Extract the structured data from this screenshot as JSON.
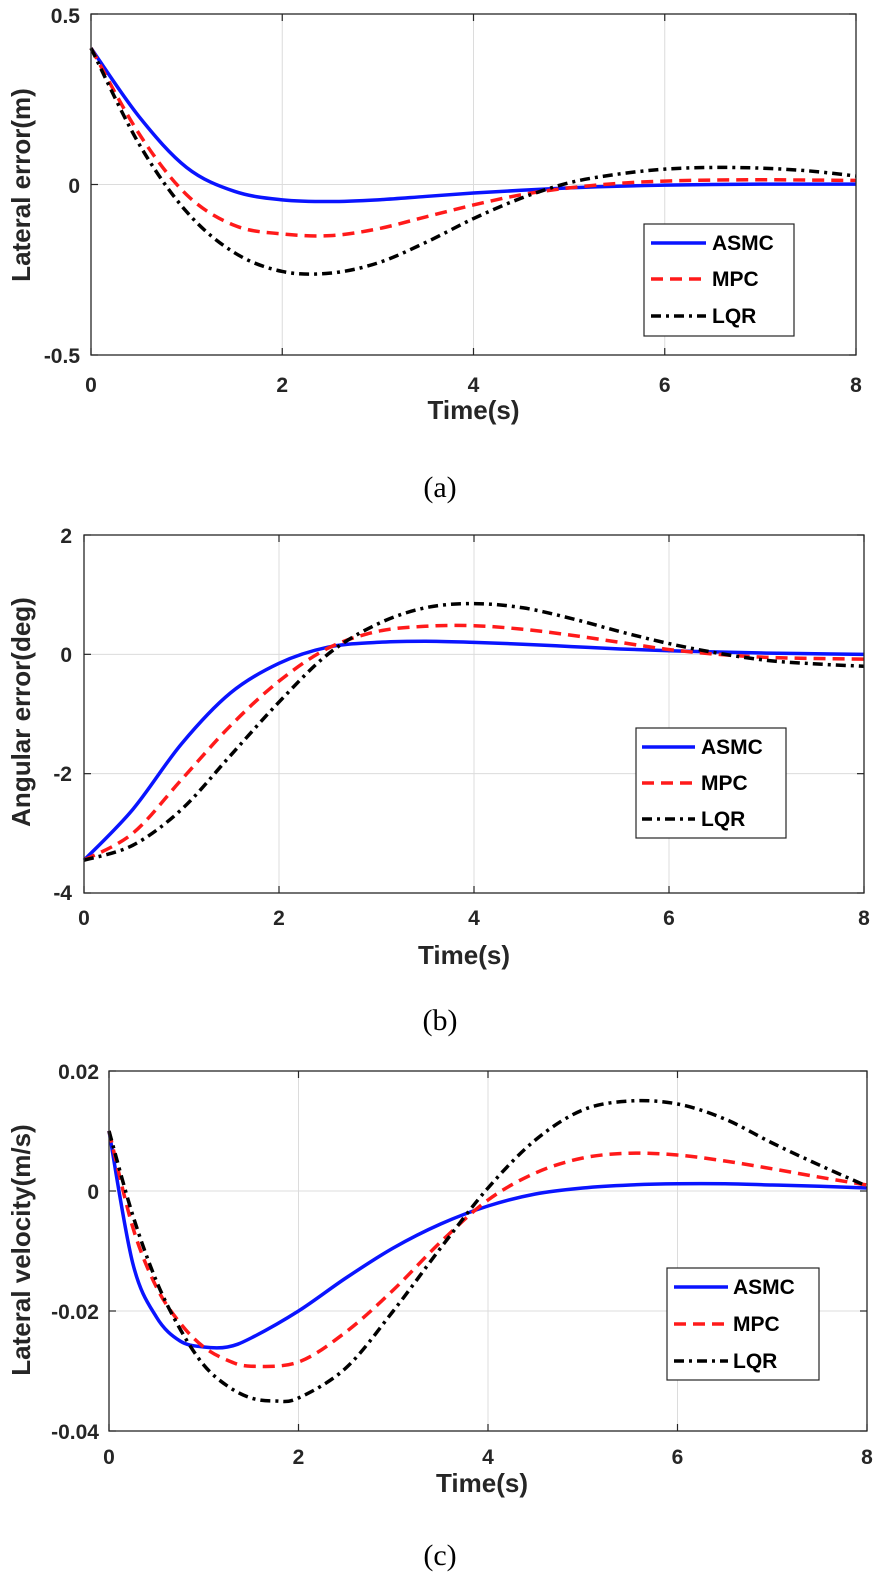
{
  "colors": {
    "ASMC": "#0a14ff",
    "MPC": "#ff1a1a",
    "LQR": "#000000",
    "grid": "#dcdcdc",
    "axis": "#262626"
  },
  "chart_data": [
    {
      "type": "line",
      "caption": "(a)",
      "xlabel": "Time(s)",
      "ylabel": "Lateral error(m)",
      "xlim": [
        0,
        8
      ],
      "ylim": [
        -0.5,
        0.5
      ],
      "xticks": [
        0,
        2,
        4,
        6,
        8
      ],
      "xtick_labels": [
        "0",
        "2",
        "4",
        "6",
        "8"
      ],
      "yticks": [
        -0.5,
        0,
        0.5
      ],
      "ytick_labels": [
        "-0.5",
        "0",
        "0.5"
      ],
      "grid": true,
      "legend_position": "right",
      "series": [
        {
          "name": "ASMC",
          "style": "solid",
          "x": [
            0,
            0.5,
            1,
            1.5,
            2,
            2.5,
            3,
            3.5,
            4,
            4.5,
            5,
            5.5,
            6,
            6.5,
            7,
            7.5,
            8
          ],
          "y": [
            0.4,
            0.2,
            0.05,
            -0.02,
            -0.045,
            -0.05,
            -0.045,
            -0.035,
            -0.025,
            -0.017,
            -0.01,
            -0.005,
            -0.002,
            0,
            0.001,
            0.001,
            0.001
          ]
        },
        {
          "name": "MPC",
          "style": "dashed",
          "x": [
            0,
            0.5,
            1,
            1.5,
            2,
            2.5,
            3,
            3.5,
            4,
            4.5,
            5,
            5.5,
            6,
            6.5,
            7,
            7.5,
            8
          ],
          "y": [
            0.4,
            0.15,
            -0.03,
            -0.12,
            -0.145,
            -0.15,
            -0.13,
            -0.095,
            -0.06,
            -0.03,
            -0.01,
            0.003,
            0.01,
            0.013,
            0.014,
            0.013,
            0.012
          ]
        },
        {
          "name": "LQR",
          "style": "dashdot",
          "x": [
            0,
            0.5,
            1,
            1.5,
            2,
            2.5,
            3,
            3.5,
            4,
            4.5,
            5,
            5.5,
            6,
            6.5,
            7,
            7.5,
            8
          ],
          "y": [
            0.4,
            0.12,
            -0.08,
            -0.2,
            -0.255,
            -0.26,
            -0.23,
            -0.17,
            -0.1,
            -0.04,
            0.005,
            0.03,
            0.045,
            0.05,
            0.048,
            0.04,
            0.025
          ]
        }
      ]
    },
    {
      "type": "line",
      "caption": "(b)",
      "xlabel": "Time(s)",
      "ylabel": "Angular error(deg)",
      "xlim": [
        0,
        8
      ],
      "ylim": [
        -4,
        2
      ],
      "xticks": [
        0,
        2,
        4,
        6,
        8
      ],
      "xtick_labels": [
        "0",
        "2",
        "4",
        "6",
        "8"
      ],
      "yticks": [
        -4,
        -2,
        0,
        2
      ],
      "ytick_labels": [
        "-4",
        "-2",
        "0",
        "2"
      ],
      "grid": true,
      "legend_position": "right",
      "series": [
        {
          "name": "ASMC",
          "style": "solid",
          "x": [
            0,
            0.5,
            1,
            1.5,
            2,
            2.5,
            3,
            3.5,
            4,
            4.5,
            5,
            5.5,
            6,
            6.5,
            7,
            7.5,
            8
          ],
          "y": [
            -3.45,
            -2.6,
            -1.5,
            -0.65,
            -0.15,
            0.12,
            0.2,
            0.22,
            0.2,
            0.17,
            0.13,
            0.09,
            0.06,
            0.04,
            0.02,
            0.01,
            0.0
          ]
        },
        {
          "name": "MPC",
          "style": "dashed",
          "x": [
            0,
            0.5,
            1,
            1.5,
            2,
            2.5,
            3,
            3.5,
            4,
            4.5,
            5,
            5.5,
            6,
            6.5,
            7,
            7.5,
            8
          ],
          "y": [
            -3.45,
            -3.0,
            -2.1,
            -1.2,
            -0.45,
            0.1,
            0.38,
            0.47,
            0.48,
            0.42,
            0.32,
            0.2,
            0.08,
            0.0,
            -0.05,
            -0.07,
            -0.08
          ]
        },
        {
          "name": "LQR",
          "style": "dashdot",
          "x": [
            0,
            0.5,
            1,
            1.5,
            2,
            2.5,
            3,
            3.5,
            4,
            4.5,
            5,
            5.5,
            6,
            6.5,
            7,
            7.5,
            8
          ],
          "y": [
            -3.45,
            -3.2,
            -2.6,
            -1.7,
            -0.8,
            0.0,
            0.5,
            0.78,
            0.85,
            0.78,
            0.6,
            0.38,
            0.18,
            0.02,
            -0.1,
            -0.16,
            -0.2
          ]
        }
      ]
    },
    {
      "type": "line",
      "caption": "(c)",
      "xlabel": "Time(s)",
      "ylabel": "Lateral velocity(m/s)",
      "xlim": [
        0,
        8
      ],
      "ylim": [
        -0.04,
        0.02
      ],
      "xticks": [
        0,
        2,
        4,
        6,
        8
      ],
      "xtick_labels": [
        "0",
        "2",
        "4",
        "6",
        "8"
      ],
      "yticks": [
        -0.04,
        -0.02,
        0,
        0.02
      ],
      "ytick_labels": [
        "-0.04",
        "-0.02",
        "0",
        "0.02"
      ],
      "grid": true,
      "legend_position": "right",
      "series": [
        {
          "name": "ASMC",
          "style": "solid",
          "x": [
            0,
            0.25,
            0.5,
            0.75,
            1,
            1.25,
            1.5,
            2,
            2.5,
            3,
            3.5,
            4,
            4.5,
            5,
            5.5,
            6,
            6.5,
            7,
            7.5,
            8
          ],
          "y": [
            0.01,
            -0.012,
            -0.021,
            -0.025,
            -0.026,
            -0.026,
            -0.0245,
            -0.02,
            -0.0145,
            -0.0095,
            -0.0055,
            -0.0025,
            -0.0005,
            0.0005,
            0.001,
            0.0012,
            0.0012,
            0.001,
            0.0008,
            0.0005
          ]
        },
        {
          "name": "MPC",
          "style": "dashed",
          "x": [
            0,
            0.25,
            0.5,
            0.75,
            1,
            1.25,
            1.5,
            2,
            2.5,
            3,
            3.5,
            4,
            4.5,
            5,
            5.5,
            6,
            6.5,
            7,
            7.5,
            8
          ],
          "y": [
            0.01,
            -0.006,
            -0.016,
            -0.022,
            -0.026,
            -0.0282,
            -0.0292,
            -0.0285,
            -0.0235,
            -0.0165,
            -0.0085,
            -0.0015,
            0.003,
            0.0055,
            0.0063,
            0.006,
            0.005,
            0.0037,
            0.0023,
            0.001
          ]
        },
        {
          "name": "LQR",
          "style": "dashdot",
          "x": [
            0,
            0.25,
            0.5,
            0.75,
            1,
            1.25,
            1.5,
            1.75,
            2,
            2.5,
            3,
            3.5,
            4,
            4.5,
            5,
            5.5,
            6,
            6.5,
            7,
            7.5,
            8
          ],
          "y": [
            0.01,
            -0.004,
            -0.015,
            -0.023,
            -0.029,
            -0.0325,
            -0.0345,
            -0.035,
            -0.0345,
            -0.0295,
            -0.02,
            -0.0095,
            0.0005,
            0.0085,
            0.0135,
            0.015,
            0.0145,
            0.012,
            0.008,
            0.0043,
            0.0008
          ]
        }
      ]
    }
  ]
}
